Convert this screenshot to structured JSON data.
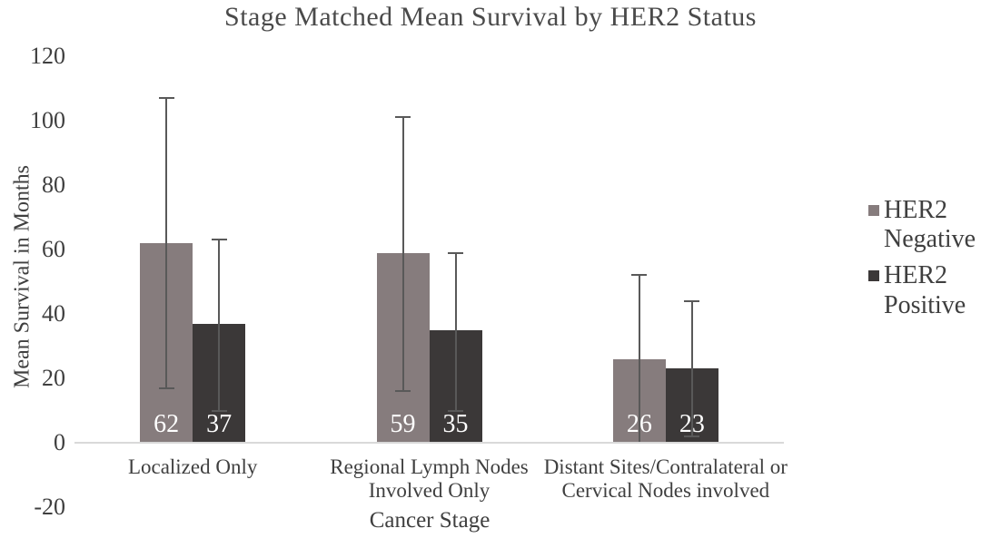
{
  "chart_data": {
    "type": "bar",
    "title": "Stage Matched Mean Survival by HER2 Status",
    "xlabel": "Cancer Stage",
    "ylabel": "Mean Survival in Months",
    "ylim": [
      -20,
      120
    ],
    "yticks": [
      120,
      100,
      80,
      60,
      40,
      20,
      0,
      -20
    ],
    "grid": false,
    "legend_position": "right",
    "categories": [
      "Localized Only",
      "Regional Lymph Nodes Involved Only",
      "Distant Sites/Contralateral or Cervical Nodes involved"
    ],
    "category_lines": [
      [
        "Localized Only"
      ],
      [
        "Regional Lymph Nodes",
        "Involved Only"
      ],
      [
        "Distant Sites/Contralateral or",
        "Cervical Nodes involved"
      ]
    ],
    "series": [
      {
        "name": "HER2 Negative",
        "legend_lines": [
          "HER2",
          "Negative"
        ],
        "color": "#867C7D",
        "values": [
          62,
          59,
          26
        ],
        "error_high": [
          107,
          101,
          52
        ],
        "error_low": [
          17,
          16,
          0
        ]
      },
      {
        "name": "HER2 Positive",
        "legend_lines": [
          "HER2",
          "Positive"
        ],
        "color": "#3B3838",
        "values": [
          37,
          35,
          23
        ],
        "error_high": [
          63,
          59,
          44
        ],
        "error_low": [
          10,
          10,
          2
        ]
      }
    ],
    "data_label_color": "#FFFFFF",
    "colors": {
      "axis_line": "#D9D9D9",
      "error_bar": "#595959",
      "text": "#3F3F3F"
    }
  }
}
